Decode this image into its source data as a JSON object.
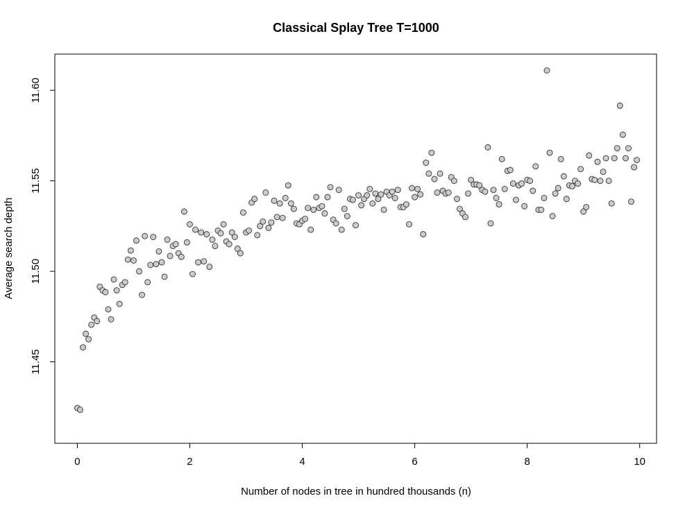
{
  "chart_data": {
    "type": "scatter",
    "title": "Classical Splay Tree T=1000",
    "xlabel": "Number of nodes in tree in hundred thousands (n)",
    "ylabel": "Average search depth",
    "xlim": [
      -0.4,
      10.3
    ],
    "ylim": [
      11.405,
      11.62
    ],
    "x_ticks": [
      0,
      2,
      4,
      6,
      8,
      10
    ],
    "x_tick_labels": [
      "0",
      "2",
      "4",
      "6",
      "8",
      "10"
    ],
    "y_ticks": [
      11.45,
      11.5,
      11.55,
      11.6
    ],
    "y_tick_labels": [
      "11.45",
      "11.50",
      "11.55",
      "11.60"
    ],
    "grid": false,
    "marker": {
      "fill": "#cccccc",
      "stroke": "#333333"
    },
    "points": [
      [
        0.0,
        11.4245
      ],
      [
        0.05,
        11.4235
      ],
      [
        0.1,
        11.458
      ],
      [
        0.15,
        11.4655
      ],
      [
        0.2,
        11.4625
      ],
      [
        0.25,
        11.4705
      ],
      [
        0.3,
        11.4745
      ],
      [
        0.35,
        11.4725
      ],
      [
        0.4,
        11.4915
      ],
      [
        0.45,
        11.4895
      ],
      [
        0.5,
        11.4885
      ],
      [
        0.55,
        11.479
      ],
      [
        0.6,
        11.4735
      ],
      [
        0.65,
        11.4955
      ],
      [
        0.7,
        11.4895
      ],
      [
        0.75,
        11.482
      ],
      [
        0.8,
        11.4925
      ],
      [
        0.85,
        11.494
      ],
      [
        0.9,
        11.5065
      ],
      [
        0.95,
        11.5115
      ],
      [
        1.0,
        11.506
      ],
      [
        1.05,
        11.517
      ],
      [
        1.1,
        11.5
      ],
      [
        1.15,
        11.487
      ],
      [
        1.2,
        11.5195
      ],
      [
        1.25,
        11.494
      ],
      [
        1.3,
        11.5035
      ],
      [
        1.35,
        11.519
      ],
      [
        1.4,
        11.504
      ],
      [
        1.45,
        11.511
      ],
      [
        1.5,
        11.505
      ],
      [
        1.55,
        11.497
      ],
      [
        1.6,
        11.5175
      ],
      [
        1.65,
        11.5085
      ],
      [
        1.7,
        11.514
      ],
      [
        1.75,
        11.515
      ],
      [
        1.8,
        11.51
      ],
      [
        1.85,
        11.508
      ],
      [
        1.9,
        11.533
      ],
      [
        1.95,
        11.516
      ],
      [
        2.0,
        11.526
      ],
      [
        2.05,
        11.4985
      ],
      [
        2.1,
        11.523
      ],
      [
        2.15,
        11.505
      ],
      [
        2.2,
        11.5215
      ],
      [
        2.25,
        11.5055
      ],
      [
        2.3,
        11.5205
      ],
      [
        2.35,
        11.5025
      ],
      [
        2.4,
        11.5175
      ],
      [
        2.45,
        11.514
      ],
      [
        2.5,
        11.5225
      ],
      [
        2.55,
        11.521
      ],
      [
        2.6,
        11.526
      ],
      [
        2.65,
        11.5165
      ],
      [
        2.7,
        11.515
      ],
      [
        2.75,
        11.5215
      ],
      [
        2.8,
        11.519
      ],
      [
        2.85,
        11.5125
      ],
      [
        2.9,
        11.51
      ],
      [
        2.95,
        11.5325
      ],
      [
        3.0,
        11.5215
      ],
      [
        3.05,
        11.5225
      ],
      [
        3.1,
        11.538
      ],
      [
        3.15,
        11.54
      ],
      [
        3.2,
        11.52
      ],
      [
        3.25,
        11.525
      ],
      [
        3.3,
        11.5275
      ],
      [
        3.35,
        11.5435
      ],
      [
        3.4,
        11.524
      ],
      [
        3.45,
        11.527
      ],
      [
        3.5,
        11.539
      ],
      [
        3.55,
        11.53
      ],
      [
        3.6,
        11.5375
      ],
      [
        3.65,
        11.5295
      ],
      [
        3.7,
        11.5405
      ],
      [
        3.75,
        11.5475
      ],
      [
        3.8,
        11.5375
      ],
      [
        3.85,
        11.5345
      ],
      [
        3.9,
        11.5265
      ],
      [
        3.95,
        11.526
      ],
      [
        4.0,
        11.528
      ],
      [
        4.05,
        11.529
      ],
      [
        4.1,
        11.535
      ],
      [
        4.15,
        11.523
      ],
      [
        4.2,
        11.534
      ],
      [
        4.25,
        11.541
      ],
      [
        4.3,
        11.535
      ],
      [
        4.35,
        11.536
      ],
      [
        4.4,
        11.532
      ],
      [
        4.45,
        11.541
      ],
      [
        4.5,
        11.5465
      ],
      [
        4.55,
        11.5285
      ],
      [
        4.6,
        11.5265
      ],
      [
        4.65,
        11.545
      ],
      [
        4.7,
        11.523
      ],
      [
        4.75,
        11.5345
      ],
      [
        4.8,
        11.5305
      ],
      [
        4.85,
        11.54
      ],
      [
        4.9,
        11.5395
      ],
      [
        4.95,
        11.5255
      ],
      [
        5.0,
        11.542
      ],
      [
        5.05,
        11.5365
      ],
      [
        5.1,
        11.54
      ],
      [
        5.15,
        11.542
      ],
      [
        5.2,
        11.5455
      ],
      [
        5.25,
        11.5375
      ],
      [
        5.3,
        11.543
      ],
      [
        5.35,
        11.54
      ],
      [
        5.4,
        11.5425
      ],
      [
        5.45,
        11.534
      ],
      [
        5.5,
        11.544
      ],
      [
        5.55,
        11.542
      ],
      [
        5.6,
        11.544
      ],
      [
        5.65,
        11.5405
      ],
      [
        5.7,
        11.545
      ],
      [
        5.75,
        11.5355
      ],
      [
        5.8,
        11.5355
      ],
      [
        5.85,
        11.537
      ],
      [
        5.9,
        11.526
      ],
      [
        5.95,
        11.546
      ],
      [
        6.0,
        11.541
      ],
      [
        6.05,
        11.5455
      ],
      [
        6.1,
        11.5425
      ],
      [
        6.15,
        11.5205
      ],
      [
        6.2,
        11.56
      ],
      [
        6.25,
        11.554
      ],
      [
        6.3,
        11.5655
      ],
      [
        6.35,
        11.551
      ],
      [
        6.4,
        11.5435
      ],
      [
        6.45,
        11.554
      ],
      [
        6.5,
        11.5445
      ],
      [
        6.55,
        11.543
      ],
      [
        6.6,
        11.5435
      ],
      [
        6.65,
        11.552
      ],
      [
        6.7,
        11.55
      ],
      [
        6.75,
        11.54
      ],
      [
        6.8,
        11.5345
      ],
      [
        6.85,
        11.532
      ],
      [
        6.9,
        11.53
      ],
      [
        6.95,
        11.543
      ],
      [
        7.0,
        11.5505
      ],
      [
        7.05,
        11.548
      ],
      [
        7.1,
        11.548
      ],
      [
        7.15,
        11.5475
      ],
      [
        7.2,
        11.545
      ],
      [
        7.25,
        11.544
      ],
      [
        7.3,
        11.5685
      ],
      [
        7.35,
        11.5265
      ],
      [
        7.4,
        11.545
      ],
      [
        7.45,
        11.5405
      ],
      [
        7.5,
        11.537
      ],
      [
        7.55,
        11.562
      ],
      [
        7.6,
        11.5455
      ],
      [
        7.65,
        11.5555
      ],
      [
        7.7,
        11.556
      ],
      [
        7.75,
        11.5485
      ],
      [
        7.8,
        11.5395
      ],
      [
        7.85,
        11.5475
      ],
      [
        7.9,
        11.5485
      ],
      [
        7.95,
        11.536
      ],
      [
        8.0,
        11.5505
      ],
      [
        8.05,
        11.55
      ],
      [
        8.1,
        11.5445
      ],
      [
        8.15,
        11.558
      ],
      [
        8.2,
        11.534
      ],
      [
        8.25,
        11.534
      ],
      [
        8.3,
        11.5405
      ],
      [
        8.35,
        11.611
      ],
      [
        8.4,
        11.5655
      ],
      [
        8.45,
        11.5305
      ],
      [
        8.5,
        11.543
      ],
      [
        8.55,
        11.546
      ],
      [
        8.6,
        11.562
      ],
      [
        8.65,
        11.5525
      ],
      [
        8.7,
        11.54
      ],
      [
        8.75,
        11.5475
      ],
      [
        8.8,
        11.547
      ],
      [
        8.85,
        11.55
      ],
      [
        8.9,
        11.5485
      ],
      [
        8.95,
        11.5565
      ],
      [
        9.0,
        11.533
      ],
      [
        9.05,
        11.5355
      ],
      [
        9.1,
        11.564
      ],
      [
        9.15,
        11.551
      ],
      [
        9.2,
        11.5505
      ],
      [
        9.25,
        11.5605
      ],
      [
        9.3,
        11.55
      ],
      [
        9.35,
        11.555
      ],
      [
        9.4,
        11.5625
      ],
      [
        9.45,
        11.55
      ],
      [
        9.5,
        11.5375
      ],
      [
        9.55,
        11.5625
      ],
      [
        9.6,
        11.568
      ],
      [
        9.65,
        11.5915
      ],
      [
        9.7,
        11.5755
      ],
      [
        9.75,
        11.5625
      ],
      [
        9.8,
        11.568
      ],
      [
        9.85,
        11.5385
      ],
      [
        9.9,
        11.5575
      ],
      [
        9.95,
        11.5615
      ]
    ]
  }
}
